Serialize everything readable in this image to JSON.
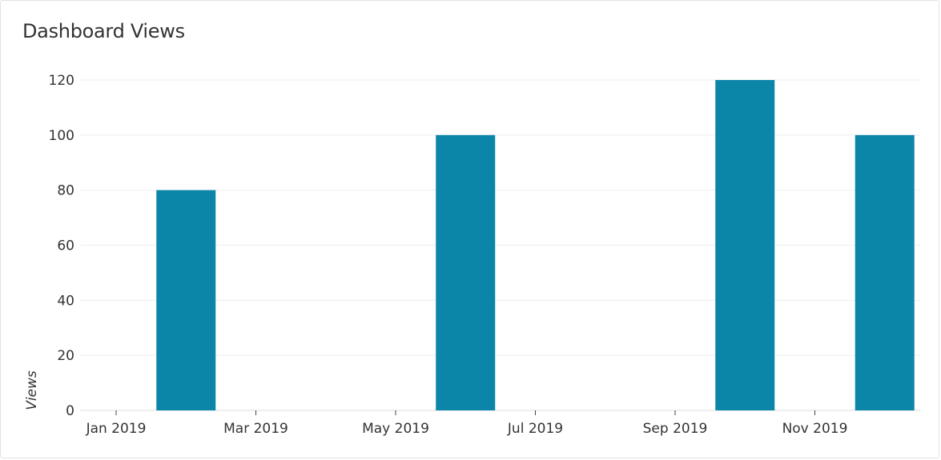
{
  "panel": {
    "title": "Dashboard Views"
  },
  "chart_data": {
    "type": "bar",
    "title": "Dashboard Views",
    "xlabel": "",
    "ylabel": "Views",
    "x_axis": "date",
    "categories": [
      "Feb 2019",
      "Jun 2019",
      "Oct 2019",
      "Dec 2019"
    ],
    "values": [
      80,
      100,
      120,
      100
    ],
    "x_ticks": [
      "Jan 2019",
      "Mar 2019",
      "May 2019",
      "Jul 2019",
      "Sep 2019",
      "Nov 2019"
    ],
    "y_ticks": [
      0,
      20,
      40,
      60,
      80,
      100,
      120
    ],
    "ylim": [
      0,
      120
    ],
    "grid": "horizontal",
    "bar_color": "#0c86a8",
    "grid_color": "#eeeeee"
  }
}
